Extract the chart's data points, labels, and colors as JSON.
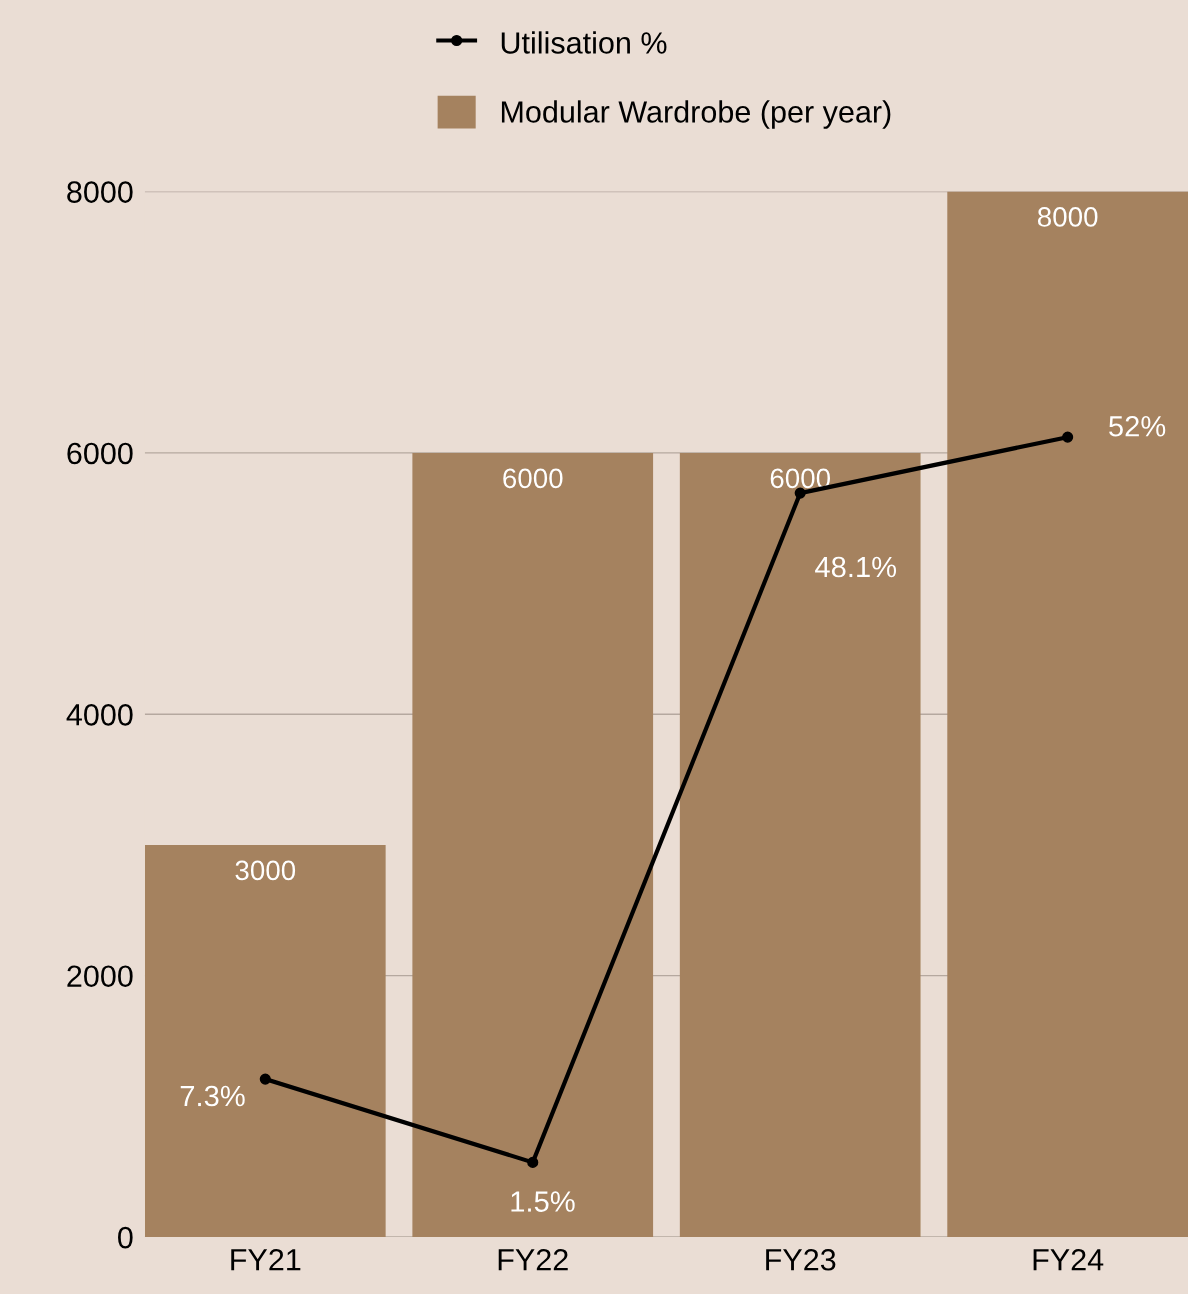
{
  "chart_data": {
    "type": "bar",
    "categories": [
      "FY21",
      "FY22",
      "FY23",
      "FY24"
    ],
    "series": [
      {
        "name": "Utilisation %",
        "type": "line",
        "axis": "y2",
        "color": "#000000",
        "values": [
          7.3,
          1.5,
          48.1,
          52
        ],
        "value_labels": [
          "7.3%",
          "1.5%",
          "48.1%",
          "52%"
        ]
      },
      {
        "name": "Modular Wardrobe (per year)",
        "color": "#a5825f",
        "values": [
          3000,
          6000,
          6000,
          8000
        ]
      }
    ],
    "data_labels": true,
    "ylim": [
      0,
      8000
    ],
    "yticks": [
      0,
      2000,
      4000,
      6000,
      8000
    ],
    "y2lim": [
      -3.7,
      69.1
    ],
    "grid": "y",
    "legend": "top",
    "marker": "circle",
    "line_style": "solid"
  }
}
